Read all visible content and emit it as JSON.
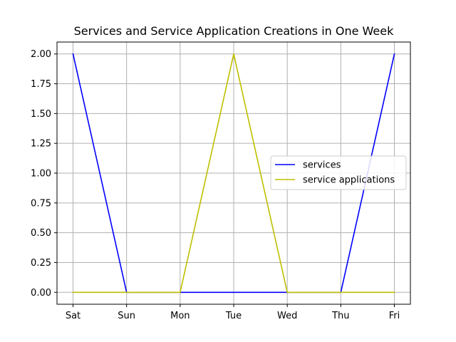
{
  "chart_data": {
    "type": "line",
    "title": "Services and Service Application Creations in One Week",
    "xlabel": "",
    "ylabel": "",
    "categories": [
      "Sat",
      "Sun",
      "Mon",
      "Tue",
      "Wed",
      "Thu",
      "Fri"
    ],
    "series": [
      {
        "name": "services",
        "values": [
          2,
          0,
          0,
          0,
          0,
          0,
          2
        ],
        "color": "#0000ff"
      },
      {
        "name": "service applications",
        "values": [
          0,
          0,
          0,
          2,
          0,
          0,
          0
        ],
        "color": "#bfbf00"
      }
    ],
    "ylim": [
      -0.1,
      2.1
    ],
    "yticks": [
      "0.00",
      "0.25",
      "0.50",
      "0.75",
      "1.00",
      "1.25",
      "1.50",
      "1.75",
      "2.00"
    ],
    "grid": true,
    "legend_position": "center-right"
  }
}
